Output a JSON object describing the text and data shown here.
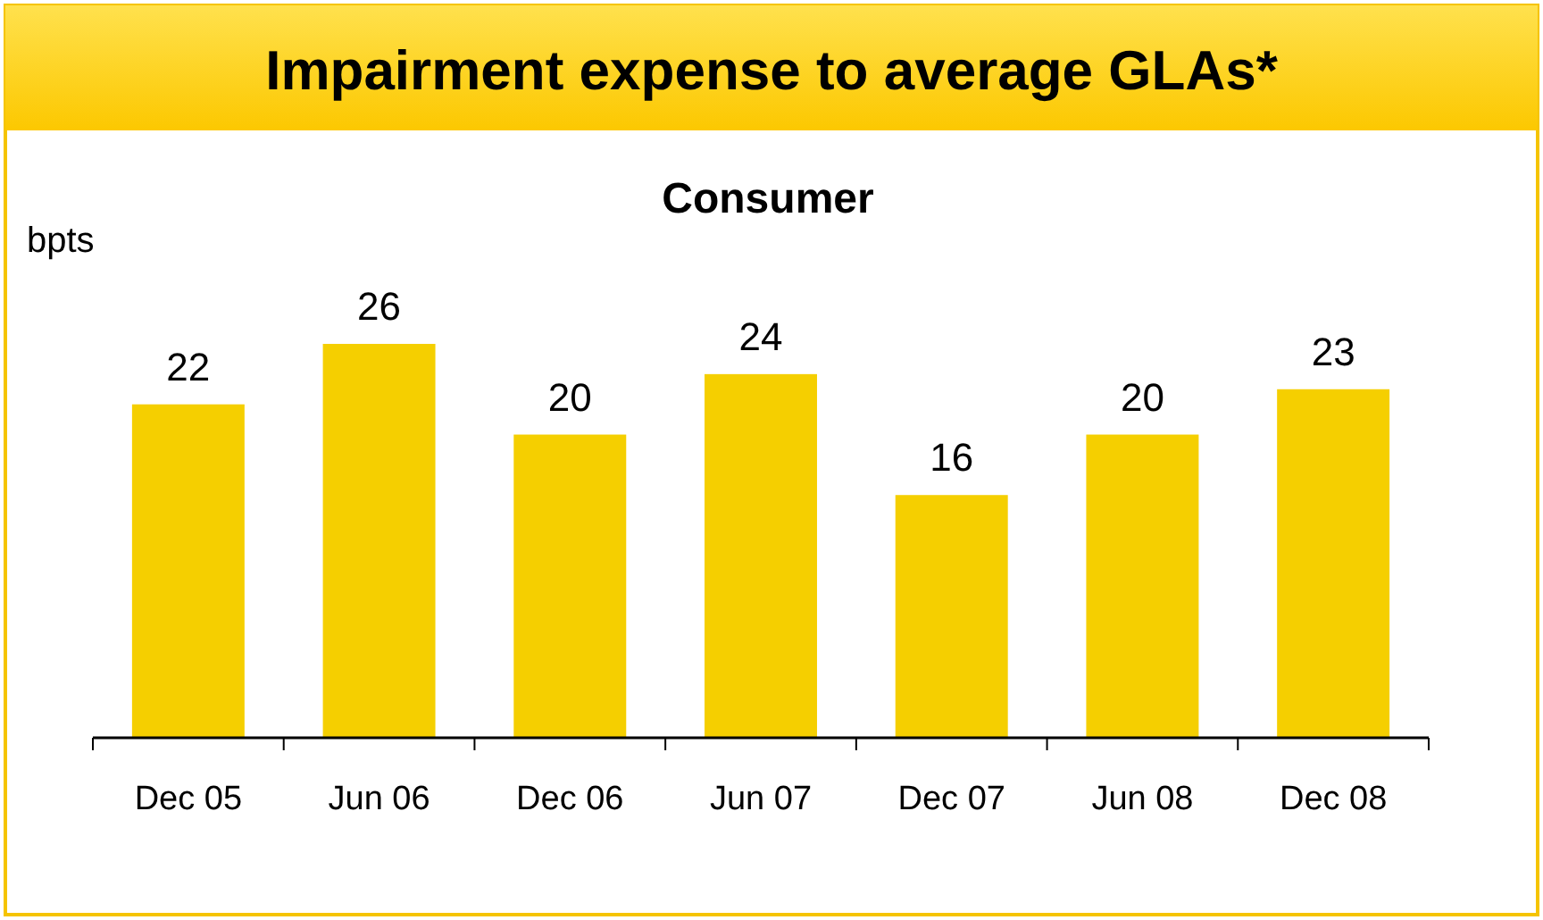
{
  "chart_data": {
    "type": "bar",
    "title": "Impairment expense to average GLAs*",
    "subtitle": "Consumer",
    "ylabel": "bpts",
    "categories": [
      "Dec 05",
      "Jun 06",
      "Dec 06",
      "Jun 07",
      "Dec 07",
      "Jun 08",
      "Dec 08"
    ],
    "values": [
      22,
      26,
      20,
      24,
      16,
      20,
      23
    ],
    "color": "#f5cf00",
    "data_labels": true
  }
}
